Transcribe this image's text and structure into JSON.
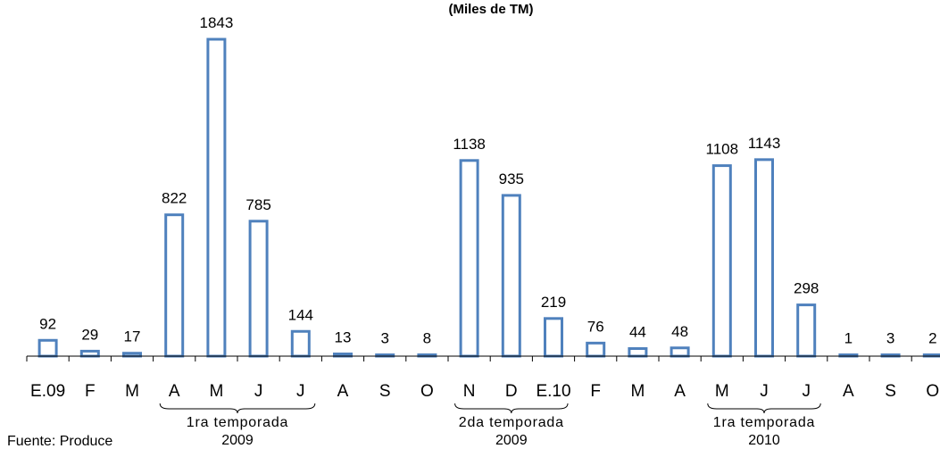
{
  "chart_data": {
    "type": "bar",
    "title": "(Miles de TM)",
    "categories": [
      "E.09",
      "F",
      "M",
      "A",
      "M",
      "J",
      "J",
      "A",
      "S",
      "O",
      "N",
      "D",
      "E.10",
      "F",
      "M",
      "A",
      "M",
      "J",
      "J",
      "A",
      "S",
      "O"
    ],
    "values": [
      92,
      29,
      17,
      822,
      1843,
      785,
      144,
      13,
      3,
      8,
      1138,
      935,
      219,
      76,
      44,
      48,
      1108,
      1143,
      298,
      1,
      3,
      2
    ],
    "value_labels": [
      "92",
      "29",
      "17",
      "822",
      "1843",
      "785",
      "144",
      "13",
      "3",
      "8",
      "1138",
      "935",
      "219",
      "76",
      "44",
      "48",
      "1108",
      "1143",
      "298",
      "1",
      "3",
      "2"
    ],
    "ylim": [
      0,
      1843
    ],
    "grid": false,
    "legend": "none",
    "bar_fill": "#ffffff",
    "bar_stroke": "#4f81bd",
    "groups": [
      {
        "line1": "1ra temporada",
        "line2": "2009",
        "start": 3,
        "end": 6
      },
      {
        "line1": "2da temporada",
        "line2": "2009",
        "start": 10,
        "end": 12
      },
      {
        "line1": "1ra temporada",
        "line2": "2010",
        "start": 16,
        "end": 18
      }
    ]
  },
  "source": "Fuente: Produce"
}
